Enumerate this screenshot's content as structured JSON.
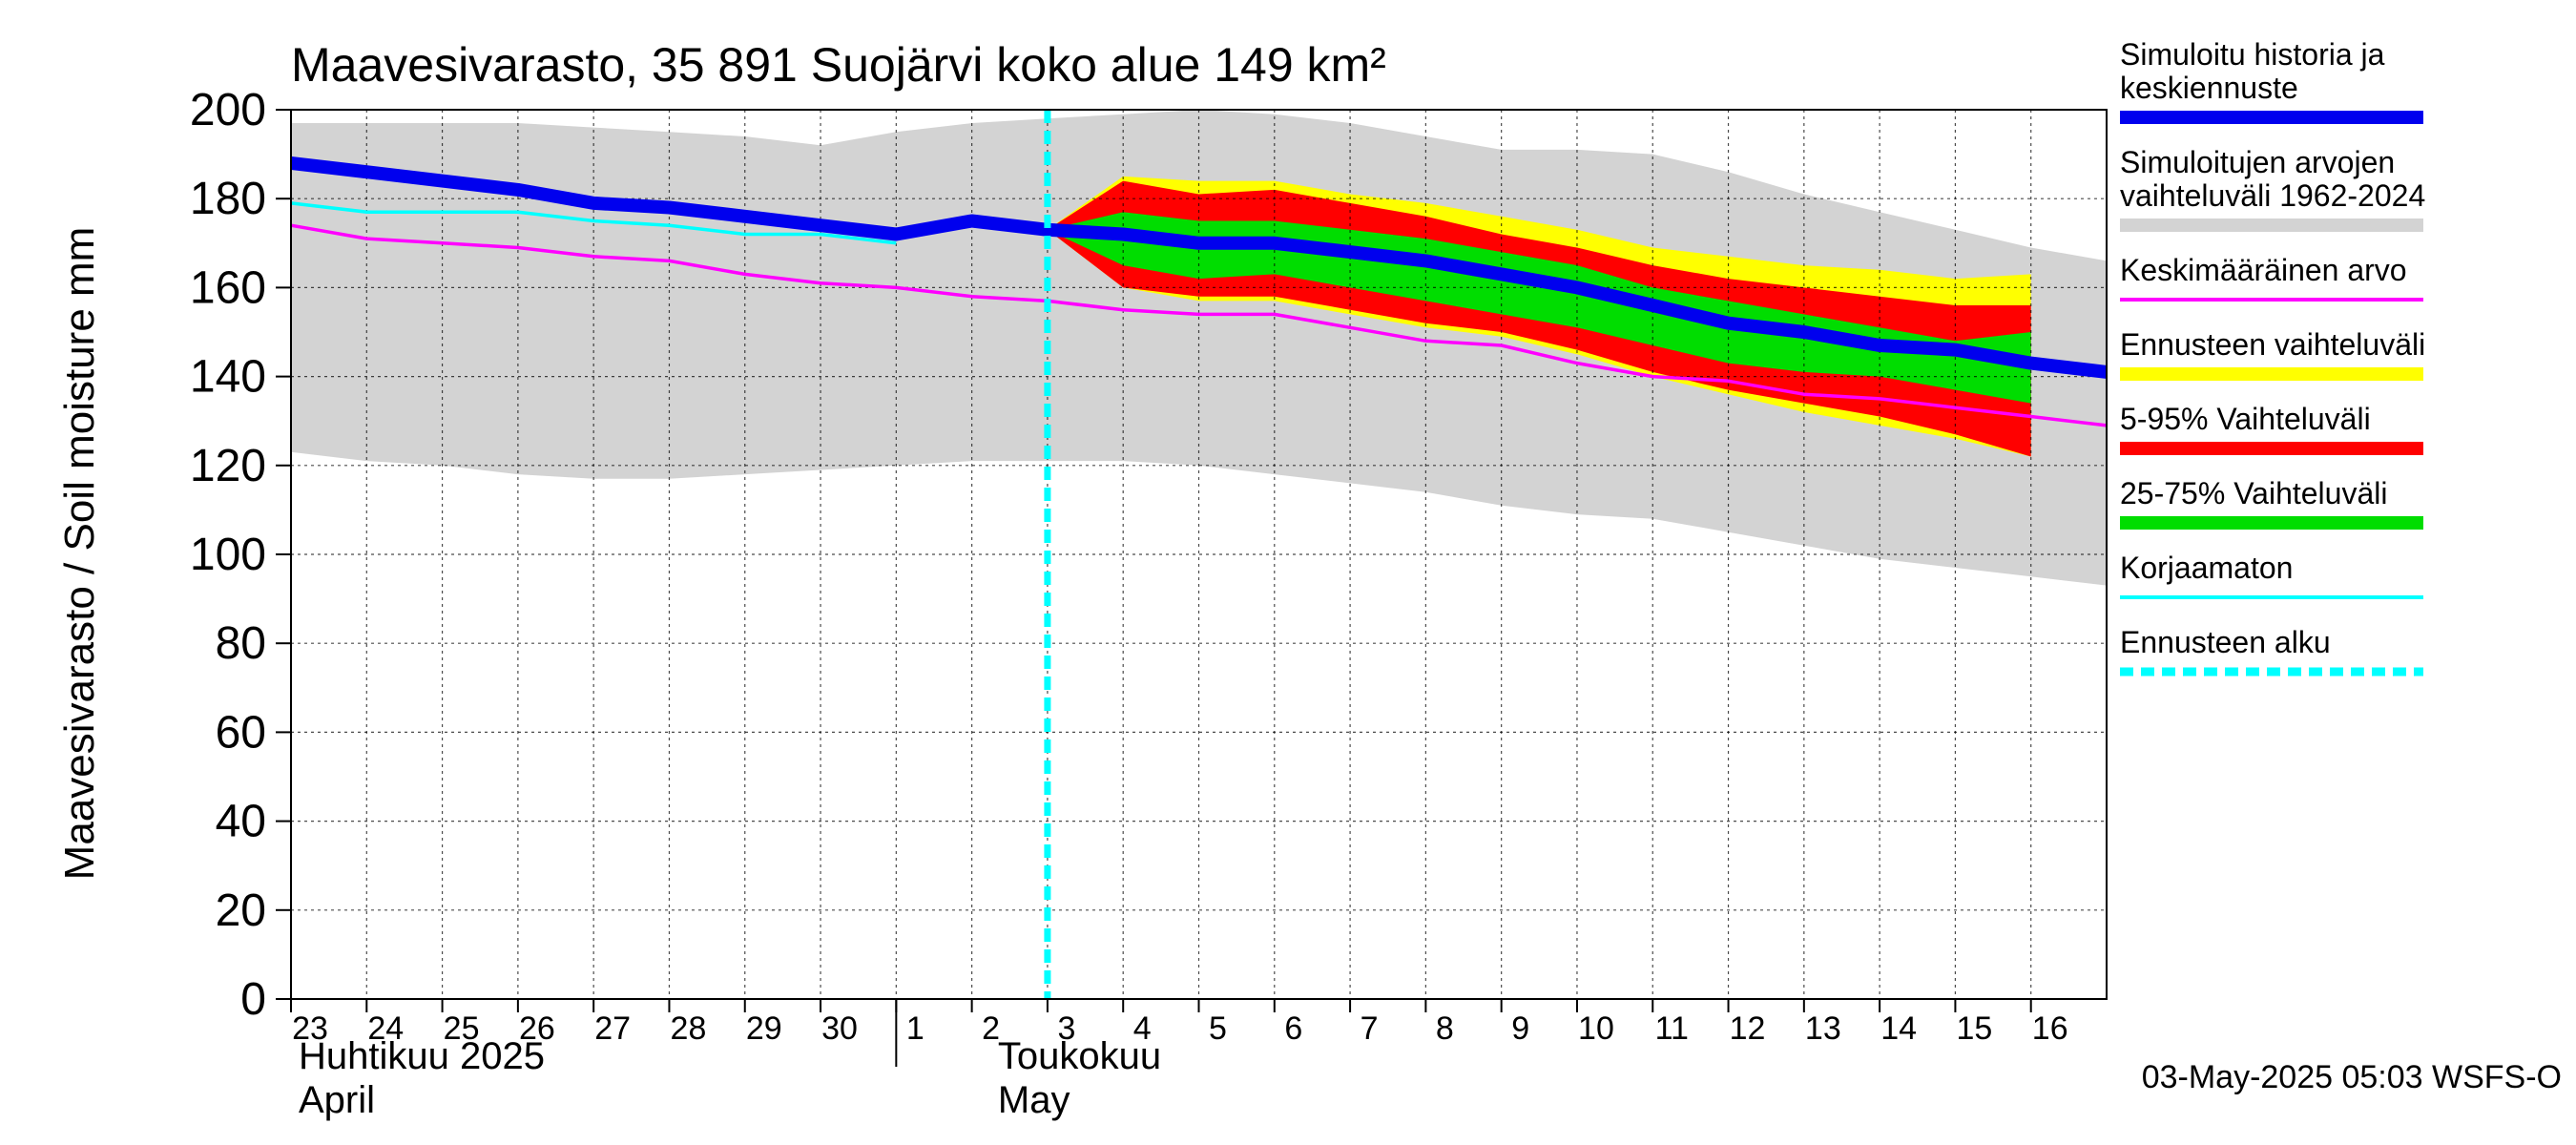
{
  "chart_data": {
    "type": "area",
    "title": "Maavesivarasto, 35 891 Suojärvi koko alue 149 km²",
    "ylabel": "Maavesivarasto / Soil moisture   mm",
    "ylim": [
      0,
      200
    ],
    "yticks": [
      0,
      20,
      40,
      60,
      80,
      100,
      120,
      140,
      160,
      180,
      200
    ],
    "grid": true,
    "legend_position": "right",
    "x_dates": [
      "2025-04-23",
      "2025-04-24",
      "2025-04-25",
      "2025-04-26",
      "2025-04-27",
      "2025-04-28",
      "2025-04-29",
      "2025-04-30",
      "2025-05-01",
      "2025-05-02",
      "2025-05-03",
      "2025-05-04",
      "2025-05-05",
      "2025-05-06",
      "2025-05-07",
      "2025-05-08",
      "2025-05-09",
      "2025-05-10",
      "2025-05-11",
      "2025-05-12",
      "2025-05-13",
      "2025-05-14",
      "2025-05-15",
      "2025-05-16",
      "2025-05-17"
    ],
    "day_labels": [
      "23",
      "24",
      "25",
      "26",
      "27",
      "28",
      "29",
      "30",
      "1",
      "2",
      "3",
      "4",
      "5",
      "6",
      "7",
      "8",
      "9",
      "10",
      "11",
      "12",
      "13",
      "14",
      "15",
      "16"
    ],
    "month_labels": [
      {
        "fi": "Huhtikuu  2025",
        "en": "April"
      },
      {
        "fi": "Toukokuu",
        "en": "May"
      }
    ],
    "forecast_start": "2025-05-03",
    "series": [
      {
        "name": "Simuloitujen arvojen vaihteluväli 1962-2024",
        "color": "#d3d3d3",
        "upper": [
          197,
          197,
          197,
          197,
          196,
          195,
          194,
          192,
          195,
          197,
          198,
          199,
          200,
          199,
          197,
          194,
          191,
          191,
          190,
          186,
          181,
          177,
          173,
          169,
          166
        ],
        "lower": [
          123,
          121,
          120,
          118,
          117,
          117,
          118,
          119,
          120,
          121,
          121,
          121,
          120,
          118,
          116,
          114,
          111,
          109,
          108,
          105,
          102,
          99,
          97,
          95,
          93
        ]
      },
      {
        "name": "Ennusteen vaihteluväli",
        "color": "#ffff00",
        "upper": [
          173,
          185,
          184,
          184,
          181,
          179,
          176,
          173,
          169,
          167,
          165,
          164,
          162,
          163
        ],
        "lower": [
          173,
          160,
          157,
          157,
          154,
          151,
          149,
          145,
          140,
          136,
          132,
          129,
          126,
          122
        ]
      },
      {
        "name": "5-95% Vaihteluväli",
        "color": "#ff0000",
        "upper": [
          173,
          184,
          181,
          182,
          179,
          176,
          172,
          169,
          165,
          162,
          160,
          158,
          156,
          156
        ],
        "lower": [
          173,
          160,
          158,
          158,
          155,
          152,
          150,
          146,
          141,
          137,
          134,
          131,
          127,
          122
        ]
      },
      {
        "name": "25-75% Vaihteluväli",
        "color": "#00dd00",
        "upper": [
          173,
          177,
          175,
          175,
          173,
          171,
          168,
          165,
          160,
          157,
          154,
          151,
          148,
          150
        ],
        "lower": [
          173,
          165,
          162,
          163,
          160,
          157,
          154,
          151,
          147,
          143,
          141,
          140,
          137,
          134
        ]
      },
      {
        "name": "Keskimääräinen arvo",
        "color": "#ff00ff",
        "values": [
          174,
          171,
          170,
          169,
          167,
          166,
          163,
          161,
          160,
          158,
          157,
          155,
          154,
          154,
          151,
          148,
          147,
          143,
          140,
          139,
          136,
          135,
          133,
          131,
          129
        ]
      },
      {
        "name": "Korjaamaton",
        "color": "#00ffff",
        "values": [
          179,
          177,
          177,
          177,
          175,
          174,
          172,
          172,
          170
        ]
      },
      {
        "name": "Simuloitu historia ja keskiennuste",
        "color": "#0000ee",
        "values": [
          188,
          186,
          184,
          182,
          179,
          178,
          176,
          174,
          172,
          175,
          173,
          172,
          170,
          170,
          168,
          166,
          163,
          160,
          156,
          152,
          150,
          147,
          146,
          143,
          141
        ]
      }
    ],
    "legend": [
      {
        "label": "Simuloitu historia ja keskiennuste",
        "color": "#0000ee",
        "style": "line-thick"
      },
      {
        "label": "Simuloitujen arvojen vaihteluväli 1962-2024",
        "color": "#d3d3d3",
        "style": "line-thick"
      },
      {
        "label": "Keskimääräinen arvo",
        "color": "#ff00ff",
        "style": "line"
      },
      {
        "label": "Ennusteen vaihteluväli",
        "color": "#ffff00",
        "style": "line-thick"
      },
      {
        "label": "5-95% Vaihteluväli",
        "color": "#ff0000",
        "style": "line-thick"
      },
      {
        "label": "25-75% Vaihteluväli",
        "color": "#00dd00",
        "style": "line-thick"
      },
      {
        "label": "Korjaamaton",
        "color": "#00ffff",
        "style": "line"
      },
      {
        "label": "Ennusteen alku",
        "color": "#00ffff",
        "style": "dashed"
      }
    ],
    "footer": "03-May-2025 05:03 WSFS-O"
  }
}
